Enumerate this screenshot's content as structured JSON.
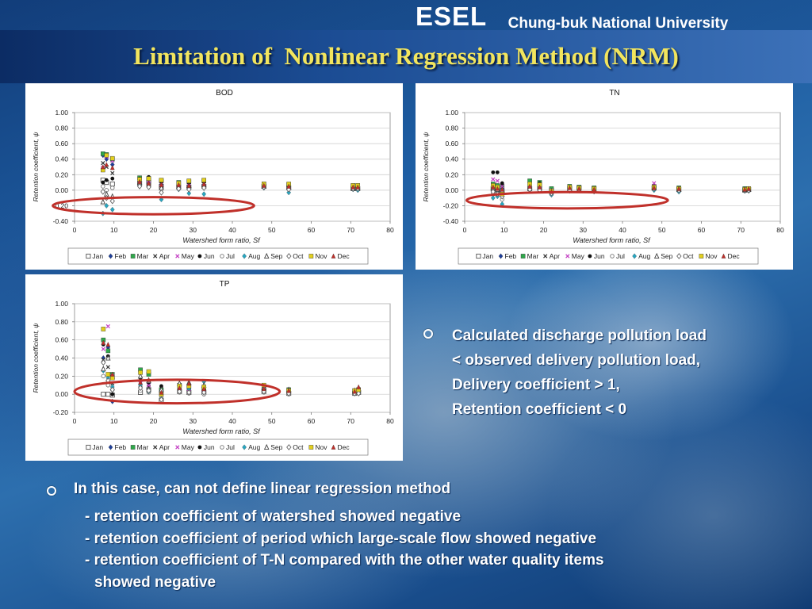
{
  "header": {
    "brand": "ESEL",
    "university": "Chung-buk National University",
    "title": "Limitation of  Nonlinear Regression Method (NRM)"
  },
  "colors": {
    "title_text": "#f2e55e",
    "highlight_ellipse": "#c0302a",
    "background": "#1e5ea3"
  },
  "legend": [
    {
      "label": "Jan",
      "marker": "square-open",
      "color": "#555555"
    },
    {
      "label": "Feb",
      "marker": "diamond",
      "color": "#1f3f9a"
    },
    {
      "label": "Mar",
      "marker": "square",
      "color": "#2fa84a"
    },
    {
      "label": "Apr",
      "marker": "x",
      "color": "#333333"
    },
    {
      "label": "May",
      "marker": "x",
      "color": "#c23cc2"
    },
    {
      "label": "Jun",
      "marker": "circle",
      "color": "#111111"
    },
    {
      "label": "Jul",
      "marker": "circle-open",
      "color": "#777777"
    },
    {
      "label": "Aug",
      "marker": "diamond",
      "color": "#27a7c2"
    },
    {
      "label": "Sep",
      "marker": "triangle-open",
      "color": "#444444"
    },
    {
      "label": "Oct",
      "marker": "diamond-open",
      "color": "#666666"
    },
    {
      "label": "Nov",
      "marker": "square",
      "color": "#e2cf1d"
    },
    {
      "label": "Dec",
      "marker": "triangle",
      "color": "#c0302a"
    }
  ],
  "chart_data": [
    {
      "type": "scatter",
      "title": "BOD",
      "xlabel": "Watershed form ratio, Sf",
      "ylabel": "Retention coefficient, ψ",
      "xlim": [
        0,
        80
      ],
      "ylim": [
        -0.4,
        1.0
      ],
      "xticks": [
        "0",
        "10",
        "20",
        "30",
        "40",
        "50",
        "60",
        "70",
        "80"
      ],
      "yticks": [
        "1.00",
        "0.80",
        "0.60",
        "0.40",
        "0.20",
        "0.00",
        "-0.20",
        "-0.40"
      ],
      "grid": true,
      "legend_position": "bottom",
      "highlight": {
        "cx": 20,
        "cy": -0.2,
        "rx": 25.5,
        "ry": 0.11
      },
      "x": [
        7.2,
        8.1,
        9.6,
        16.5,
        18.8,
        22,
        26.4,
        29,
        32.8,
        48,
        54.3,
        70.6,
        71.8
      ],
      "series": [
        {
          "name": "Jan",
          "values": [
            0.13,
            0.1,
            0.08,
            0.09,
            0.1,
            0.05,
            0.04,
            0.04,
            0.05,
            0.05,
            0.03,
            0.02,
            0.02
          ]
        },
        {
          "name": "Feb",
          "values": [
            0.45,
            0.4,
            0.33,
            0.14,
            0.13,
            0.1,
            0.08,
            0.09,
            0.1,
            0.07,
            0.06,
            0.05,
            0.05
          ]
        },
        {
          "name": "Mar",
          "values": [
            0.47,
            0.46,
            0.4,
            0.16,
            0.15,
            0.12,
            0.1,
            0.11,
            0.12,
            0.08,
            0.07,
            0.06,
            0.06
          ]
        },
        {
          "name": "Apr",
          "values": [
            0.35,
            0.3,
            0.22,
            0.12,
            0.11,
            0.06,
            0.06,
            0.07,
            0.08,
            0.06,
            0.05,
            0.04,
            0.04
          ]
        },
        {
          "name": "May",
          "values": [
            0.29,
            0.43,
            0.38,
            0.13,
            0.12,
            0.08,
            0.07,
            0.09,
            0.09,
            0.06,
            0.05,
            0.05,
            0.04
          ]
        },
        {
          "name": "Jun",
          "values": [
            0.1,
            0.13,
            0.15,
            0.15,
            0.17,
            0.11,
            0.09,
            0.1,
            0.11,
            0.07,
            0.06,
            0.05,
            0.05
          ]
        },
        {
          "name": "Jul",
          "values": [
            0.05,
            0.0,
            0.03,
            0.08,
            0.06,
            0.02,
            0.03,
            0.02,
            0.04,
            0.04,
            0.02,
            0.02,
            0.01
          ]
        },
        {
          "name": "Aug",
          "values": [
            -0.3,
            -0.2,
            -0.25,
            0.07,
            0.05,
            -0.12,
            0.01,
            -0.04,
            -0.05,
            0.03,
            -0.03,
            0.01,
            0.0
          ]
        },
        {
          "name": "Sep",
          "values": [
            -0.15,
            -0.05,
            -0.08,
            0.1,
            0.08,
            0.03,
            0.05,
            0.06,
            0.07,
            0.05,
            0.04,
            0.03,
            0.03
          ]
        },
        {
          "name": "Oct",
          "values": [
            -0.02,
            -0.1,
            -0.14,
            0.05,
            0.04,
            -0.03,
            0.02,
            0.01,
            0.03,
            0.04,
            0.01,
            0.02,
            0.02
          ]
        },
        {
          "name": "Nov",
          "values": [
            0.26,
            0.45,
            0.41,
            0.14,
            0.15,
            0.13,
            0.09,
            0.12,
            0.13,
            0.08,
            0.08,
            0.06,
            0.06
          ]
        },
        {
          "name": "Dec",
          "values": [
            0.3,
            0.33,
            0.29,
            0.11,
            0.09,
            0.07,
            0.07,
            0.06,
            0.08,
            0.06,
            0.05,
            0.04,
            0.04
          ]
        }
      ]
    },
    {
      "type": "scatter",
      "title": "TN",
      "xlabel": "Watershed form ratio, Sf",
      "ylabel": "Retention coefficient, ψ",
      "xlim": [
        0,
        80
      ],
      "ylim": [
        -0.4,
        1.0
      ],
      "xticks": [
        "0",
        "10",
        "20",
        "30",
        "40",
        "50",
        "60",
        "70",
        "80"
      ],
      "yticks": [
        "1.00",
        "0.80",
        "0.60",
        "0.40",
        "0.20",
        "0.00",
        "-0.20",
        "-0.40"
      ],
      "grid": true,
      "legend_position": "bottom",
      "highlight": {
        "cx": 26,
        "cy": -0.13,
        "rx": 25.5,
        "ry": 0.105
      },
      "x": [
        7.2,
        8.3,
        9.5,
        16.5,
        19,
        22,
        26.6,
        29,
        32.8,
        48,
        54.3,
        71,
        72
      ],
      "series": [
        {
          "name": "Jan",
          "values": [
            0.02,
            0.0,
            -0.01,
            0.02,
            0.03,
            0.0,
            0.02,
            0.03,
            0.02,
            0.03,
            0.01,
            0.0,
            0.01
          ]
        },
        {
          "name": "Feb",
          "values": [
            0.05,
            0.03,
            0.02,
            0.06,
            0.05,
            -0.02,
            0.03,
            0.02,
            0.01,
            0.04,
            0.02,
            0.01,
            0.01
          ]
        },
        {
          "name": "Mar",
          "values": [
            0.08,
            0.06,
            0.05,
            0.12,
            0.1,
            0.02,
            0.05,
            0.04,
            0.03,
            0.05,
            0.03,
            0.02,
            0.02
          ]
        },
        {
          "name": "Apr",
          "values": [
            0.0,
            -0.02,
            -0.04,
            0.04,
            0.02,
            -0.03,
            0.02,
            0.01,
            0.0,
            0.02,
            0.0,
            0.0,
            0.0
          ]
        },
        {
          "name": "May",
          "values": [
            0.14,
            0.12,
            0.05,
            0.07,
            0.06,
            0.0,
            0.04,
            0.03,
            0.02,
            0.09,
            0.02,
            0.01,
            0.02
          ]
        },
        {
          "name": "Jun",
          "values": [
            0.23,
            0.23,
            0.09,
            0.08,
            0.09,
            -0.01,
            0.04,
            0.03,
            0.02,
            0.05,
            0.02,
            0.01,
            0.02
          ]
        },
        {
          "name": "Jul",
          "values": [
            -0.05,
            -0.04,
            -0.12,
            0.02,
            0.01,
            -0.05,
            0.01,
            0.0,
            -0.01,
            0.01,
            -0.01,
            -0.01,
            0.0
          ]
        },
        {
          "name": "Aug",
          "values": [
            -0.1,
            -0.08,
            -0.18,
            0.0,
            -0.01,
            -0.06,
            -0.01,
            0.0,
            -0.02,
            0.0,
            -0.02,
            -0.01,
            -0.01
          ]
        },
        {
          "name": "Sep",
          "values": [
            0.03,
            0.01,
            0.0,
            0.04,
            0.03,
            -0.01,
            0.02,
            0.01,
            0.01,
            0.03,
            0.01,
            0.01,
            0.01
          ]
        },
        {
          "name": "Oct",
          "values": [
            -0.02,
            -0.05,
            -0.08,
            0.01,
            0.0,
            -0.04,
            0.0,
            0.0,
            -0.01,
            0.02,
            0.0,
            0.0,
            0.0
          ]
        },
        {
          "name": "Nov",
          "values": [
            0.06,
            0.04,
            -0.05,
            0.08,
            0.07,
            -0.01,
            0.04,
            0.03,
            0.02,
            0.04,
            0.02,
            0.01,
            0.02
          ]
        },
        {
          "name": "Dec",
          "values": [
            0.04,
            0.02,
            0.01,
            0.05,
            0.04,
            -0.02,
            0.03,
            0.02,
            0.01,
            0.03,
            0.02,
            0.01,
            0.02
          ]
        }
      ]
    },
    {
      "type": "scatter",
      "title": "TP",
      "xlabel": "Watershed form ratio, Sf",
      "ylabel": "Retention coefficient, ψ",
      "xlim": [
        0,
        80
      ],
      "ylim": [
        -0.2,
        1.0
      ],
      "xticks": [
        "0",
        "10",
        "20",
        "30",
        "40",
        "50",
        "60",
        "70",
        "80"
      ],
      "yticks": [
        "1.00",
        "0.80",
        "0.60",
        "0.40",
        "0.20",
        "0.00",
        "-0.20"
      ],
      "grid": true,
      "legend_position": "bottom",
      "highlight": {
        "cx": 26,
        "cy": 0.03,
        "rx": 26,
        "ry": 0.13
      },
      "x": [
        7.3,
        8.5,
        9.6,
        16.7,
        18.8,
        22,
        26.6,
        29,
        32.8,
        48,
        54.3,
        71,
        72
      ],
      "series": [
        {
          "name": "Jan",
          "values": [
            0.0,
            0.0,
            -0.01,
            0.02,
            0.05,
            -0.07,
            0.03,
            0.02,
            0.02,
            0.03,
            0.01,
            0.01,
            0.02
          ]
        },
        {
          "name": "Feb",
          "values": [
            0.4,
            0.52,
            -0.08,
            0.15,
            0.12,
            0.0,
            0.06,
            0.05,
            0.05,
            0.06,
            0.03,
            0.02,
            0.03
          ]
        },
        {
          "name": "Mar",
          "values": [
            0.6,
            0.48,
            0.22,
            0.27,
            0.22,
            0.05,
            0.1,
            0.08,
            0.07,
            0.07,
            0.05,
            0.04,
            0.05
          ]
        },
        {
          "name": "Apr",
          "values": [
            0.38,
            0.3,
            0.12,
            0.1,
            0.08,
            -0.02,
            0.05,
            0.04,
            0.03,
            0.05,
            0.02,
            0.02,
            0.02
          ]
        },
        {
          "name": "May",
          "values": [
            0.5,
            0.75,
            0.2,
            0.12,
            0.1,
            0.02,
            0.07,
            0.06,
            0.05,
            0.06,
            0.03,
            0.03,
            0.03
          ]
        },
        {
          "name": "Jun",
          "values": [
            0.55,
            0.42,
            0.0,
            0.18,
            0.13,
            0.09,
            0.08,
            0.07,
            0.06,
            0.05,
            0.04,
            0.03,
            0.04
          ]
        },
        {
          "name": "Jul",
          "values": [
            0.2,
            0.1,
            0.05,
            0.04,
            0.02,
            -0.04,
            0.02,
            0.01,
            0.0,
            0.02,
            0.0,
            0.01,
            0.01
          ]
        },
        {
          "name": "Aug",
          "values": [
            0.26,
            0.18,
            0.08,
            0.1,
            0.03,
            -0.05,
            0.03,
            0.06,
            0.14,
            0.04,
            0.02,
            0.01,
            0.02
          ]
        },
        {
          "name": "Sep",
          "values": [
            0.28,
            0.4,
            0.2,
            0.2,
            0.15,
            0.05,
            0.12,
            0.13,
            0.1,
            0.08,
            0.05,
            0.04,
            0.06
          ]
        },
        {
          "name": "Oct",
          "values": [
            0.35,
            0.15,
            0.05,
            0.07,
            0.04,
            -0.06,
            0.03,
            0.02,
            0.02,
            0.03,
            0.01,
            0.01,
            0.01
          ]
        },
        {
          "name": "Nov",
          "values": [
            0.72,
            0.22,
            0.18,
            0.24,
            0.25,
            0.0,
            0.09,
            0.09,
            0.08,
            0.1,
            0.04,
            0.04,
            0.05
          ]
        },
        {
          "name": "Dec",
          "values": [
            0.57,
            0.55,
            0.22,
            0.13,
            0.16,
            0.02,
            0.07,
            0.12,
            0.06,
            0.06,
            0.04,
            0.03,
            0.08
          ]
        }
      ]
    }
  ],
  "right_points": {
    "lines": [
      "Calculated discharge pollution load",
      "< observed delivery pollution load,",
      "Delivery coefficient > 1,",
      "Retention coefficient < 0"
    ]
  },
  "bottom_points": {
    "heading": "In this case, can not define linear regression method",
    "lines": [
      "- retention coefficient of watershed showed negative",
      "- retention coefficient of period which large-scale flow showed negative",
      "- retention coefficient of T-N compared with the other water quality items",
      "showed negative"
    ]
  }
}
